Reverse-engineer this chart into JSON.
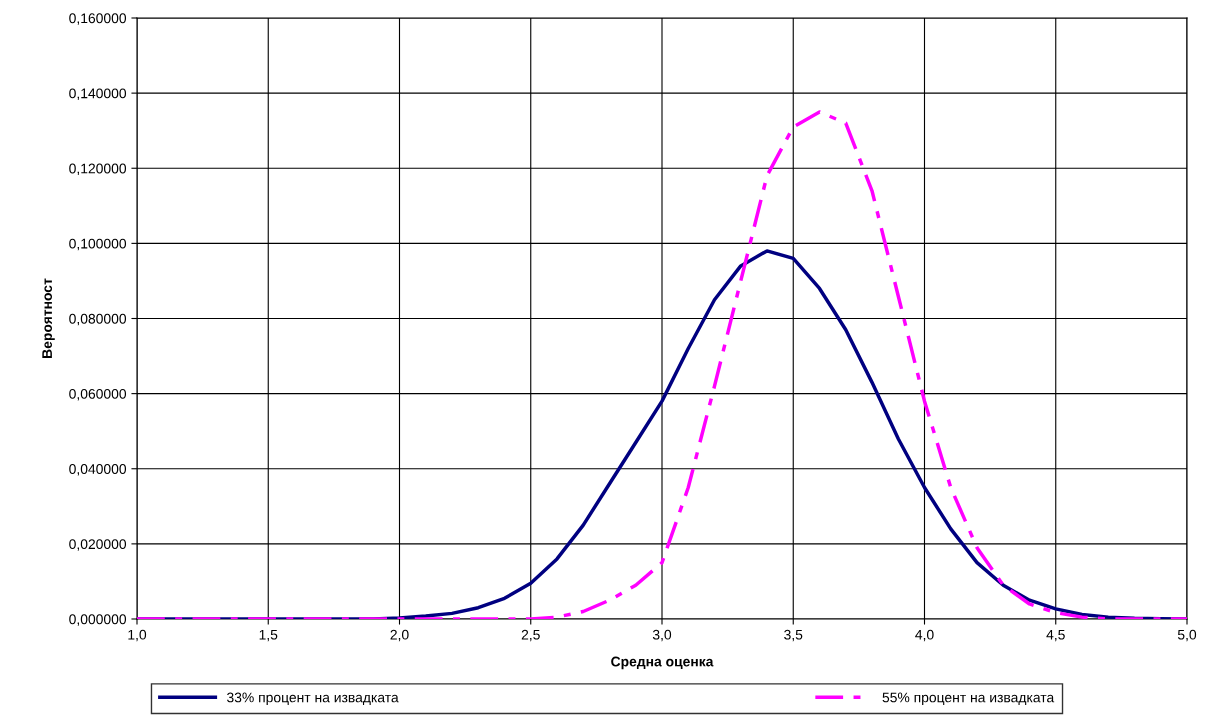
{
  "chart_data": {
    "type": "line",
    "xlabel": "Средна оценка",
    "ylabel": "Вероятност",
    "x": [
      1.0,
      1.1,
      1.2,
      1.3,
      1.4,
      1.5,
      1.6,
      1.7,
      1.8,
      1.9,
      2.0,
      2.1,
      2.2,
      2.3,
      2.4,
      2.5,
      2.6,
      2.7,
      2.8,
      2.9,
      3.0,
      3.1,
      3.2,
      3.3,
      3.4,
      3.5,
      3.6,
      3.7,
      3.8,
      3.9,
      4.0,
      4.1,
      4.2,
      4.3,
      4.4,
      4.5,
      4.6,
      4.7,
      4.8,
      4.9,
      5.0
    ],
    "series": [
      {
        "name": "33% процент на извадката",
        "color": "#000080",
        "line_style": "solid",
        "values": [
          0,
          0,
          0,
          0,
          0,
          0,
          0,
          0,
          0,
          0,
          0.0003,
          0.0008,
          0.0015,
          0.003,
          0.0055,
          0.0095,
          0.016,
          0.025,
          0.036,
          0.047,
          0.058,
          0.072,
          0.085,
          0.094,
          0.098,
          0.096,
          0.088,
          0.077,
          0.063,
          0.048,
          0.035,
          0.024,
          0.015,
          0.009,
          0.005,
          0.0027,
          0.0012,
          0.0005,
          0.0002,
          0.0001,
          0
        ]
      },
      {
        "name": "55% процент на извадката",
        "color": "#ff00ff",
        "line_style": "dashed",
        "values": [
          0,
          0,
          0,
          0,
          0,
          0,
          0,
          0,
          0,
          0,
          0,
          0,
          0,
          0,
          0,
          0,
          0.0005,
          0.002,
          0.005,
          0.009,
          0.015,
          0.035,
          0.062,
          0.09,
          0.118,
          0.131,
          0.135,
          0.132,
          0.114,
          0.086,
          0.058,
          0.035,
          0.019,
          0.009,
          0.004,
          0.0017,
          0.0005,
          0,
          0,
          0,
          0
        ]
      }
    ],
    "xlim": [
      1.0,
      5.0
    ],
    "xticks": [
      {
        "value": 1.0,
        "label": "1,0"
      },
      {
        "value": 1.5,
        "label": "1,5"
      },
      {
        "value": 2.0,
        "label": "2,0"
      },
      {
        "value": 2.5,
        "label": "2,5"
      },
      {
        "value": 3.0,
        "label": "3,0"
      },
      {
        "value": 3.5,
        "label": "3,5"
      },
      {
        "value": 4.0,
        "label": "4,0"
      },
      {
        "value": 4.5,
        "label": "4,5"
      },
      {
        "value": 5.0,
        "label": "5,0"
      }
    ],
    "ylim": [
      0,
      0.16
    ],
    "yticks": [
      {
        "value": 0,
        "label": "0,000000"
      },
      {
        "value": 0.02,
        "label": "0,020000"
      },
      {
        "value": 0.04,
        "label": "0,040000"
      },
      {
        "value": 0.06,
        "label": "0,060000"
      },
      {
        "value": 0.08,
        "label": "0,080000"
      },
      {
        "value": 0.1,
        "label": "0,100000"
      },
      {
        "value": 0.12,
        "label": "0,120000"
      },
      {
        "value": 0.14,
        "label": "0,140000"
      },
      {
        "value": 0.16,
        "label": "0,160000"
      }
    ],
    "grid": true,
    "legend": "bottom",
    "marker": "none"
  }
}
